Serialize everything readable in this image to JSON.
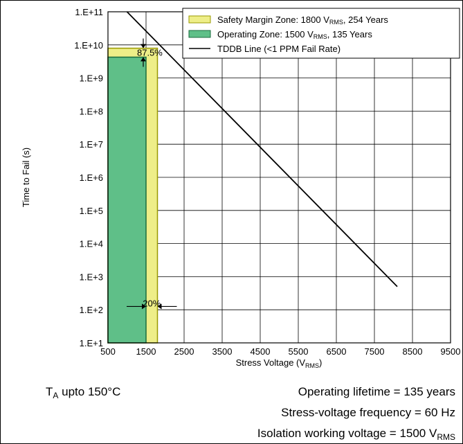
{
  "chart_data": {
    "type": "area",
    "xlabel": {
      "text": "Stress Voltage (V",
      "sub": "RMS",
      "tail": ")"
    },
    "ylabel": "Time to Fail (s)",
    "xlim": [
      500,
      9500
    ],
    "ylim_log10": [
      1,
      11
    ],
    "x_ticks": [
      "500",
      "1500",
      "2500",
      "3500",
      "4500",
      "5500",
      "6500",
      "7500",
      "8500",
      "9500"
    ],
    "y_ticks": [
      "1.E+1",
      "1.E+2",
      "1.E+3",
      "1.E+4",
      "1.E+5",
      "1.E+6",
      "1.E+7",
      "1.E+8",
      "1.E+9",
      "1.E+10",
      "1.E+11"
    ],
    "grid": true,
    "legend_position": "top-right",
    "series": [
      {
        "name": {
          "text": "Safety Margin Zone: 1800 V",
          "sub": "RMS",
          "tail": ", 254 Years"
        },
        "kind": "zone",
        "color": "#eeee88",
        "edge": "#999900",
        "x": [
          500,
          1800
        ],
        "y_log10": [
          1,
          9.9
        ]
      },
      {
        "name": {
          "text": "Operating Zone: 1500 V",
          "sub": "RMS",
          "tail": ", 135 Years"
        },
        "kind": "zone",
        "color": "#5fbf88",
        "edge": "#1a6b3c",
        "x": [
          500,
          1500
        ],
        "y_log10": [
          1,
          9.63
        ]
      },
      {
        "name": {
          "text": "TDDB Line (<1 PPM Fail Rate)"
        },
        "kind": "line",
        "color": "#000000",
        "points": [
          [
            1000,
            11.0
          ],
          [
            8100,
            2.7
          ]
        ]
      }
    ],
    "annotations": [
      {
        "text": "87.5%",
        "anchor": [
          1500,
          9.78
        ]
      },
      {
        "text": "20%",
        "anchor": [
          1650,
          2.2
        ]
      }
    ]
  },
  "notes": {
    "temperature": {
      "prefix": "T",
      "sub": "A",
      "text": " upto 150°C"
    },
    "lifetime": "Operating lifetime = 135 years",
    "frequency": "Stress-voltage frequency = 60 Hz",
    "isolation": {
      "text": "Isolation working voltage = 1500 V",
      "sub": "RMS"
    }
  },
  "colors": {
    "safety_zone": "#eeee88",
    "operating_zone": "#5fbf88",
    "tddb_line": "#000000",
    "grid": "#000000"
  }
}
